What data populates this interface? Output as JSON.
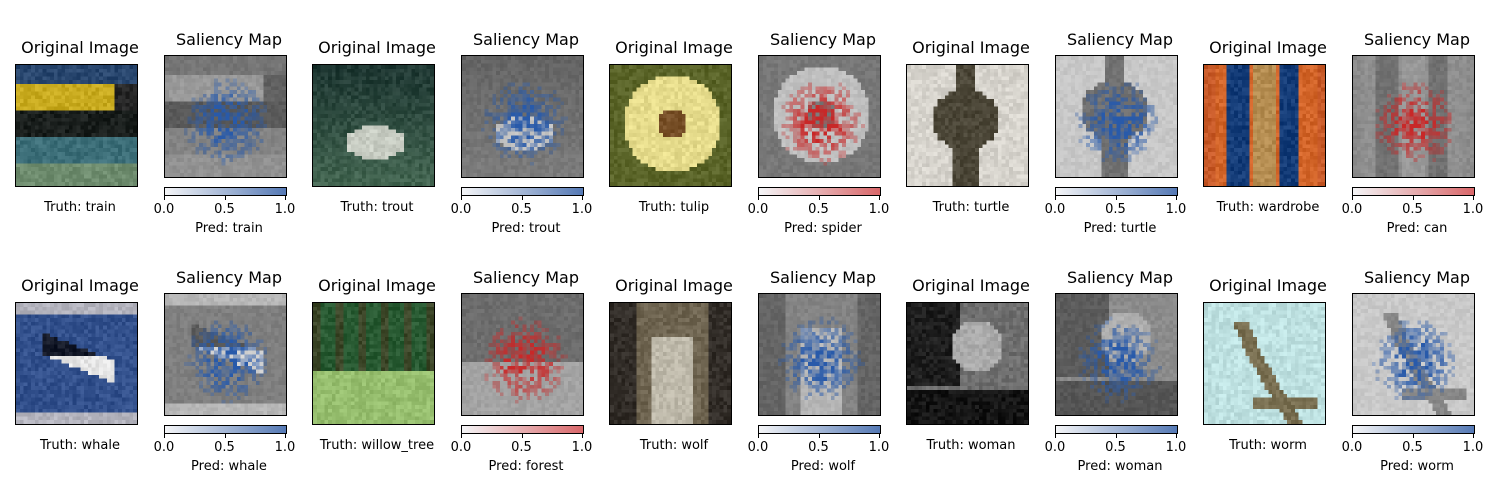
{
  "titles": {
    "original": "Original Image",
    "saliency": "Saliency Map"
  },
  "colorbar_ticks": [
    "0.0",
    "0.5",
    "1.0"
  ],
  "samples": [
    {
      "truth": "Truth: train",
      "pred": "Pred: train",
      "cmap": "blue",
      "scene": "train"
    },
    {
      "truth": "Truth: trout",
      "pred": "Pred: trout",
      "cmap": "blue",
      "scene": "trout"
    },
    {
      "truth": "Truth: tulip",
      "pred": "Pred: spider",
      "cmap": "red",
      "scene": "tulip"
    },
    {
      "truth": "Truth: turtle",
      "pred": "Pred: turtle",
      "cmap": "blue",
      "scene": "turtle"
    },
    {
      "truth": "Truth: wardrobe",
      "pred": "Pred: can",
      "cmap": "red",
      "scene": "wardrobe"
    },
    {
      "truth": "Truth: whale",
      "pred": "Pred: whale",
      "cmap": "blue",
      "scene": "whale"
    },
    {
      "truth": "Truth: willow_tree",
      "pred": "Pred: forest",
      "cmap": "red",
      "scene": "willow"
    },
    {
      "truth": "Truth: wolf",
      "pred": "Pred: wolf",
      "cmap": "blue",
      "scene": "wolf"
    },
    {
      "truth": "Truth: woman",
      "pred": "Pred: woman",
      "cmap": "blue",
      "scene": "woman"
    },
    {
      "truth": "Truth: worm",
      "pred": "Pred: worm",
      "cmap": "blue",
      "scene": "worm"
    }
  ],
  "colors": {
    "blue_max": "#5579b5",
    "red_max": "#d9676a",
    "bar_min": "#f4f5f7"
  }
}
